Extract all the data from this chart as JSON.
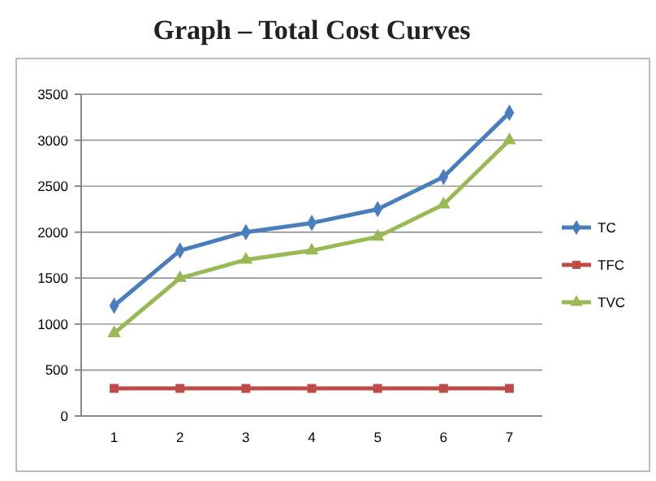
{
  "chart_data": {
    "type": "line",
    "title": "Graph – Total Cost Curves",
    "categories": [
      "1",
      "2",
      "3",
      "4",
      "5",
      "6",
      "7"
    ],
    "series": [
      {
        "name": "TC",
        "color": "#4a7ebb",
        "marker": "diamond",
        "values": [
          1200,
          1800,
          2000,
          2100,
          2250,
          2600,
          3300
        ]
      },
      {
        "name": "TFC",
        "color": "#be4b48",
        "marker": "square",
        "values": [
          300,
          300,
          300,
          300,
          300,
          300,
          300
        ]
      },
      {
        "name": "TVC",
        "color": "#98b954",
        "marker": "triangle",
        "values": [
          900,
          1500,
          1700,
          1800,
          1950,
          2300,
          3000
        ]
      }
    ],
    "ylim": [
      0,
      3500
    ],
    "yticks": [
      0,
      500,
      1000,
      1500,
      2000,
      2500,
      3000,
      3500
    ],
    "grid": "y",
    "legend": "right"
  }
}
